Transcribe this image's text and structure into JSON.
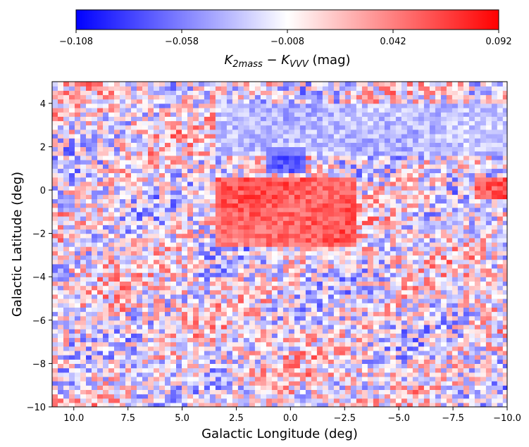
{
  "chart_data": {
    "type": "heatmap",
    "xlabel": "Galactic Longitude (deg)",
    "ylabel": "Galactic Latitude (deg)",
    "xlim": [
      11,
      -10
    ],
    "ylim": [
      -10,
      5
    ],
    "x_ticks": [
      10.0,
      7.5,
      5.0,
      2.5,
      0.0,
      -2.5,
      -5.0,
      -7.5,
      -10.0
    ],
    "x_tick_labels": [
      "10.0",
      "7.5",
      "5.0",
      "2.5",
      "0.0",
      "−2.5",
      "−5.0",
      "−7.5",
      "−10.0"
    ],
    "y_ticks": [
      4,
      2,
      0,
      -2,
      -4,
      -6,
      -8,
      -10
    ],
    "y_tick_labels": [
      "4",
      "2",
      "0",
      "−2",
      "−4",
      "−6",
      "−8",
      "−10"
    ],
    "colorbar": {
      "label_main": "K",
      "label_sub1": "2mass",
      "label_minus": " − ",
      "label_sub2": "VVV",
      "label_unit": " (mag)",
      "min": -0.108,
      "max": 0.092,
      "ticks": [
        -0.108,
        -0.058,
        -0.008,
        0.042,
        0.092
      ],
      "tick_labels": [
        "−0.108",
        "−0.058",
        "−0.008",
        "0.042",
        "0.092"
      ],
      "colormap": "bwr",
      "colors": {
        "low": "#0000ff",
        "mid": "#ffffff",
        "high": "#ff0000"
      }
    },
    "features": [
      {
        "l_range": [
          3.5,
          -3.0
        ],
        "b_range": [
          -2.6,
          0.6
        ],
        "mean": 0.075
      },
      {
        "l_range": [
          -8.5,
          -10.0
        ],
        "b_range": [
          -0.4,
          0.6
        ],
        "mean": 0.09
      },
      {
        "l_range": [
          1.2,
          -0.7
        ],
        "b_range": [
          0.7,
          1.9
        ],
        "mean": -0.1
      },
      {
        "l_range": [
          3.5,
          -10.0
        ],
        "b_range": [
          1.5,
          4.0
        ],
        "mean": -0.04
      },
      {
        "l_range": [
          10.8,
          10.0
        ],
        "b_range": [
          -1.0,
          -0.3
        ],
        "mean": -0.06
      },
      {
        "l_range": [
          10.8,
          10.2
        ],
        "b_range": [
          -4.3,
          -3.5
        ],
        "mean": -0.06
      },
      {
        "l_range": [
          8.0,
          7.5
        ],
        "b_range": [
          -5.7,
          -5.3
        ],
        "mean": 0.08
      },
      {
        "l_range": [
          6.4,
          5.8
        ],
        "b_range": [
          -5.6,
          -5.1
        ],
        "mean": 0.06
      }
    ]
  }
}
